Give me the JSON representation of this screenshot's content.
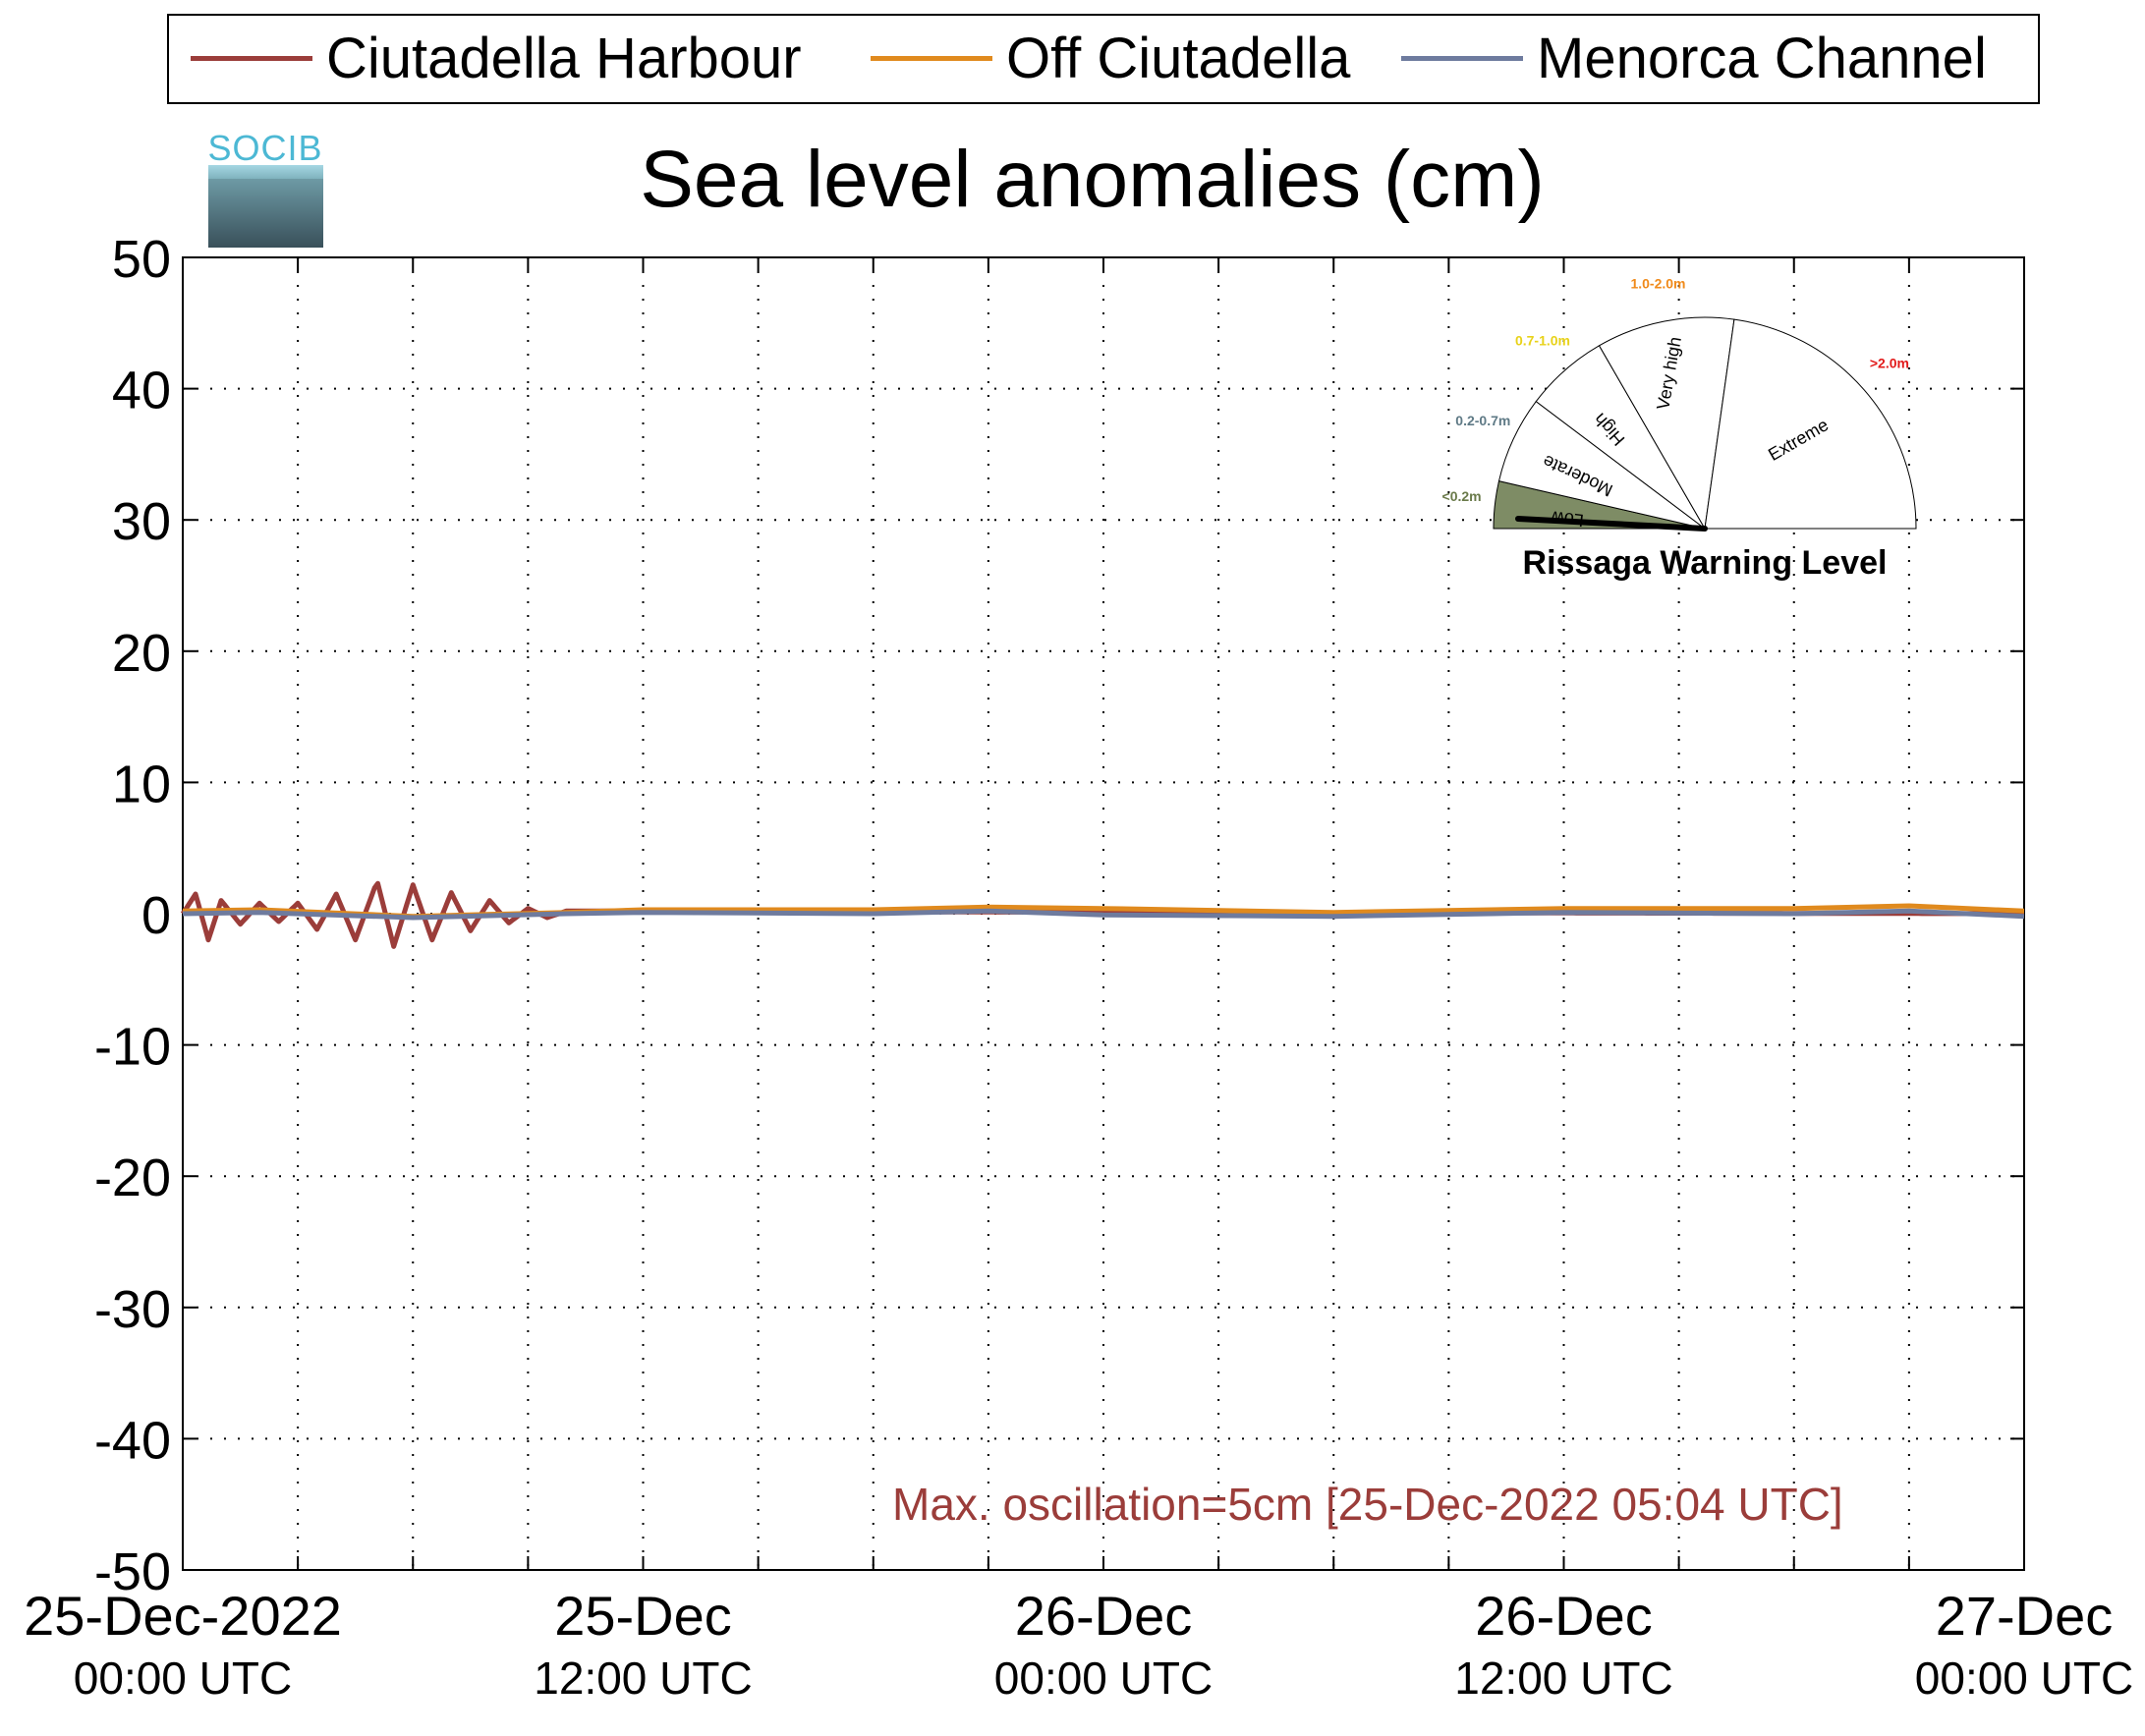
{
  "chart_data": {
    "type": "line",
    "title": "Sea level anomalies (cm)",
    "ylabel": "",
    "xlabel": "",
    "ylim": [
      -50,
      50
    ],
    "yticks": [
      50,
      40,
      30,
      20,
      10,
      0,
      -10,
      -20,
      -30,
      -40,
      -50
    ],
    "xlim": [
      "2022-12-25T00:00",
      "2022-12-27T00:00"
    ],
    "xticks": [
      {
        "x": "2022-12-25T00:00",
        "line1": "25-Dec-2022",
        "line2": "00:00 UTC"
      },
      {
        "x": "2022-12-25T12:00",
        "line1": "25-Dec",
        "line2": "12:00 UTC"
      },
      {
        "x": "2022-12-26T00:00",
        "line1": "26-Dec",
        "line2": "00:00 UTC"
      },
      {
        "x": "2022-12-26T12:00",
        "line1": "26-Dec",
        "line2": "12:00 UTC"
      },
      {
        "x": "2022-12-27T00:00",
        "line1": "27-Dec",
        "line2": "00:00 UTC"
      }
    ],
    "minor_xtick_hours": 3,
    "grid": true,
    "legend_placement": "top",
    "series": [
      {
        "name": "Ciutadella Harbour",
        "color": "#9b3d3a",
        "points": [
          [
            "2022-12-25T00:00",
            0.0
          ],
          [
            "2022-12-25T00:20",
            1.5
          ],
          [
            "2022-12-25T00:40",
            -2.0
          ],
          [
            "2022-12-25T01:00",
            1.0
          ],
          [
            "2022-12-25T01:30",
            -0.8
          ],
          [
            "2022-12-25T02:00",
            0.8
          ],
          [
            "2022-12-25T02:30",
            -0.6
          ],
          [
            "2022-12-25T03:00",
            0.8
          ],
          [
            "2022-12-25T03:30",
            -1.2
          ],
          [
            "2022-12-25T04:00",
            1.5
          ],
          [
            "2022-12-25T04:30",
            -2.0
          ],
          [
            "2022-12-25T05:04",
            2.5
          ],
          [
            "2022-12-25T05:30",
            -2.5
          ],
          [
            "2022-12-25T06:00",
            2.2
          ],
          [
            "2022-12-25T06:30",
            -2.0
          ],
          [
            "2022-12-25T07:00",
            1.6
          ],
          [
            "2022-12-25T07:30",
            -1.3
          ],
          [
            "2022-12-25T08:00",
            1.0
          ],
          [
            "2022-12-25T08:30",
            -0.7
          ],
          [
            "2022-12-25T09:00",
            0.4
          ],
          [
            "2022-12-25T09:30",
            -0.3
          ],
          [
            "2022-12-25T10:00",
            0.2
          ],
          [
            "2022-12-25T12:00",
            0.2
          ],
          [
            "2022-12-26T00:00",
            0.1
          ],
          [
            "2022-12-27T00:00",
            0.0
          ]
        ]
      },
      {
        "name": "Off Ciutadella",
        "color": "#e08a1e",
        "points": [
          [
            "2022-12-25T00:00",
            0.2
          ],
          [
            "2022-12-25T02:00",
            0.3
          ],
          [
            "2022-12-25T06:00",
            -0.2
          ],
          [
            "2022-12-25T10:00",
            0.1
          ],
          [
            "2022-12-25T12:00",
            0.3
          ],
          [
            "2022-12-25T18:00",
            0.3
          ],
          [
            "2022-12-25T21:00",
            0.5
          ],
          [
            "2022-12-26T00:00",
            0.4
          ],
          [
            "2022-12-26T06:00",
            0.1
          ],
          [
            "2022-12-26T12:00",
            0.4
          ],
          [
            "2022-12-26T18:00",
            0.4
          ],
          [
            "2022-12-26T21:00",
            0.6
          ],
          [
            "2022-12-27T00:00",
            0.2
          ]
        ]
      },
      {
        "name": "Menorca Channel",
        "color": "#6e7b9e",
        "points": [
          [
            "2022-12-25T00:00",
            0.0
          ],
          [
            "2022-12-25T02:00",
            0.1
          ],
          [
            "2022-12-25T06:00",
            -0.3
          ],
          [
            "2022-12-25T10:00",
            0.0
          ],
          [
            "2022-12-25T12:00",
            0.1
          ],
          [
            "2022-12-25T18:00",
            0.0
          ],
          [
            "2022-12-25T21:00",
            0.2
          ],
          [
            "2022-12-26T00:00",
            -0.1
          ],
          [
            "2022-12-26T06:00",
            -0.2
          ],
          [
            "2022-12-26T12:00",
            0.1
          ],
          [
            "2022-12-26T18:00",
            0.0
          ],
          [
            "2022-12-26T21:00",
            0.2
          ],
          [
            "2022-12-27T00:00",
            -0.2
          ]
        ]
      }
    ],
    "annotation": "Max. oscillation=5cm [25-Dec-2022 05:04 UTC]"
  },
  "legend": {
    "items": [
      {
        "label": "Ciutadella Harbour",
        "color": "#9b3d3a"
      },
      {
        "label": "Off Ciutadella",
        "color": "#e08a1e"
      },
      {
        "label": "Menorca Channel",
        "color": "#6e7b9e"
      }
    ]
  },
  "logo": {
    "text": "SOCIB"
  },
  "gauge": {
    "title": "Rissaga Warning Level",
    "current_level": "Low",
    "sectors": [
      {
        "name": "Low",
        "range": "<0.2m",
        "range_color": "#6a7a4a",
        "fill": "#7e8c65"
      },
      {
        "name": "Moderate",
        "range": "0.2-0.7m",
        "range_color": "#5f7a86",
        "fill": "#ffffff"
      },
      {
        "name": "High",
        "range": "0.7-1.0m",
        "range_color": "#e8d21a",
        "fill": "#ffffff"
      },
      {
        "name": "Very high",
        "range": "1.0-2.0m",
        "range_color": "#f08a1a",
        "fill": "#ffffff"
      },
      {
        "name": "Extreme",
        "range": ">2.0m",
        "range_color": "#e21b1b",
        "fill": "#ffffff"
      }
    ]
  }
}
